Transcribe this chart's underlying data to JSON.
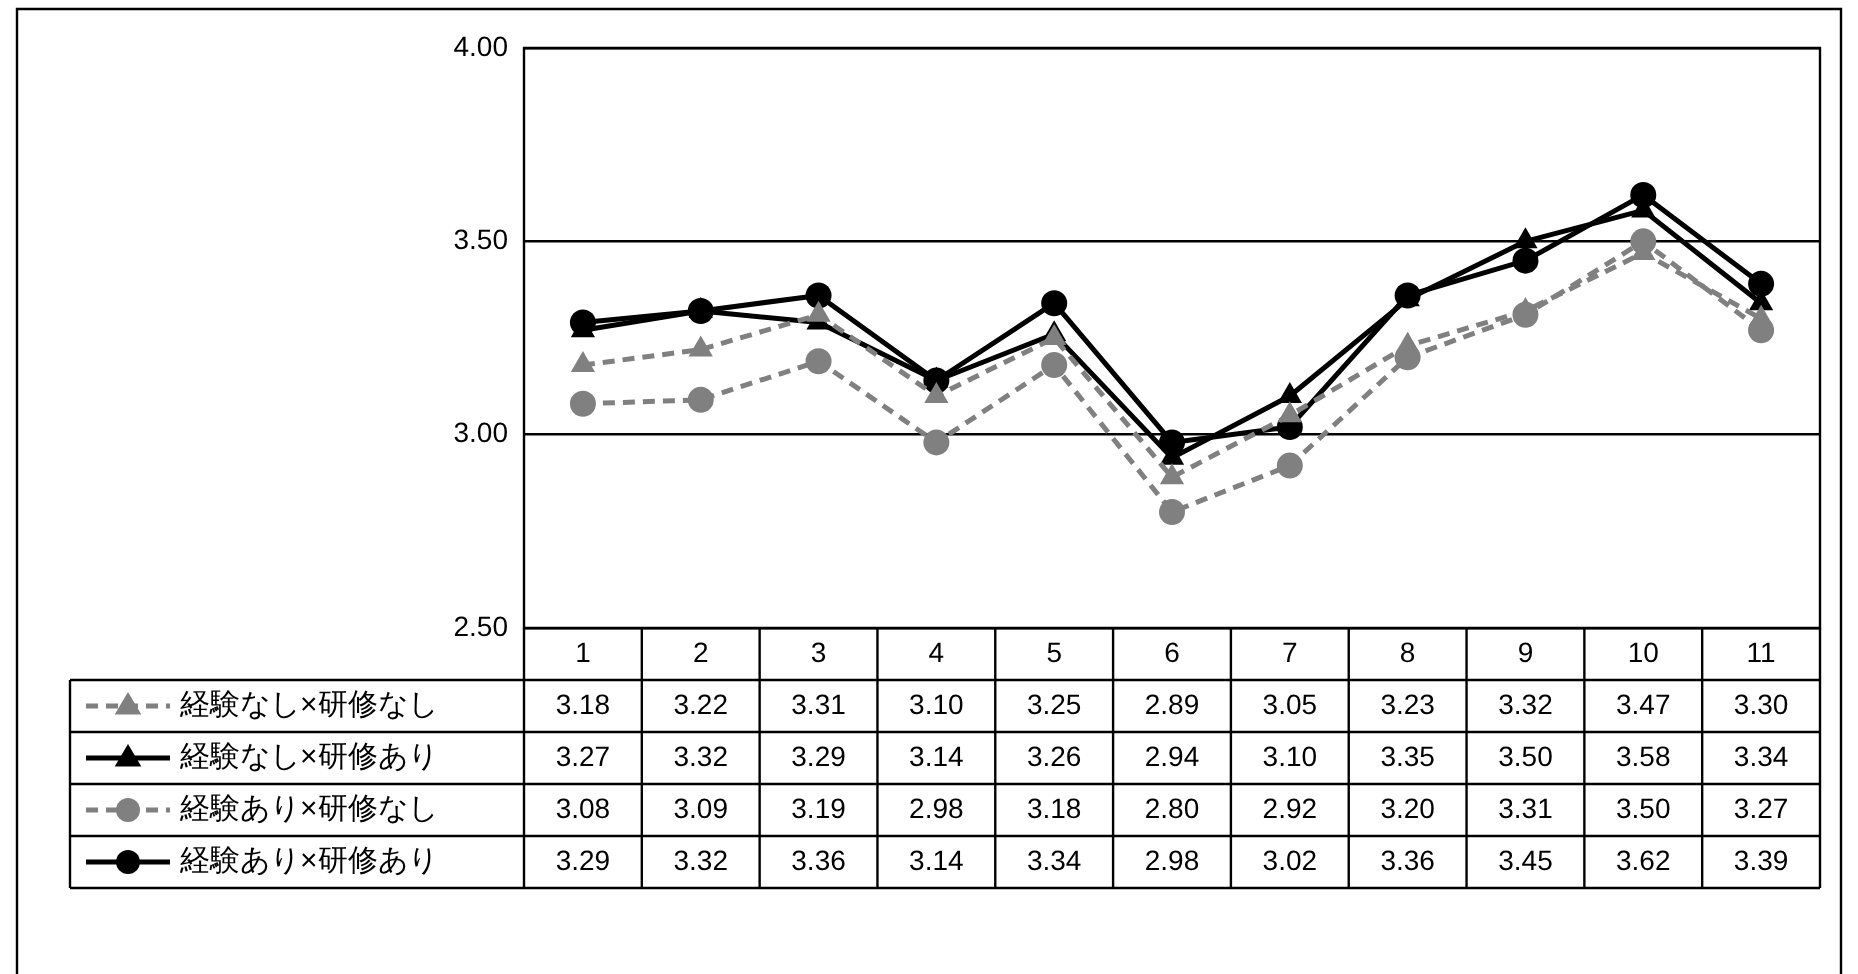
{
  "chart_data": {
    "type": "line",
    "categories": [
      "1",
      "2",
      "3",
      "4",
      "5",
      "6",
      "7",
      "8",
      "9",
      "10",
      "11"
    ],
    "series": [
      {
        "name": "経験なし×研修なし",
        "color": "#808080",
        "marker": "triangle",
        "line_style": "dashed",
        "values": [
          3.18,
          3.22,
          3.31,
          3.1,
          3.25,
          2.89,
          3.05,
          3.23,
          3.32,
          3.47,
          3.3
        ],
        "value_labels": [
          "3.18",
          "3.22",
          "3.31",
          "3.10",
          "3.25",
          "2.89",
          "3.05",
          "3.23",
          "3.32",
          "3.47",
          "3.30"
        ]
      },
      {
        "name": "経験なし×研修あり",
        "color": "#000000",
        "marker": "triangle",
        "line_style": "solid",
        "values": [
          3.27,
          3.32,
          3.29,
          3.14,
          3.26,
          2.94,
          3.1,
          3.35,
          3.5,
          3.58,
          3.34
        ],
        "value_labels": [
          "3.27",
          "3.32",
          "3.29",
          "3.14",
          "3.26",
          "2.94",
          "3.10",
          "3.35",
          "3.50",
          "3.58",
          "3.34"
        ]
      },
      {
        "name": "経験あり×研修なし",
        "color": "#808080",
        "marker": "circle",
        "line_style": "dashed",
        "values": [
          3.08,
          3.09,
          3.19,
          2.98,
          3.18,
          2.8,
          2.92,
          3.2,
          3.31,
          3.5,
          3.27
        ],
        "value_labels": [
          "3.08",
          "3.09",
          "3.19",
          "2.98",
          "3.18",
          "2.80",
          "2.92",
          "3.20",
          "3.31",
          "3.50",
          "3.27"
        ]
      },
      {
        "name": "経験あり×研修あり",
        "color": "#000000",
        "marker": "circle",
        "line_style": "solid",
        "values": [
          3.29,
          3.32,
          3.36,
          3.14,
          3.34,
          2.98,
          3.02,
          3.36,
          3.45,
          3.62,
          3.39
        ],
        "value_labels": [
          "3.29",
          "3.32",
          "3.36",
          "3.14",
          "3.34",
          "2.98",
          "3.02",
          "3.36",
          "3.45",
          "3.62",
          "3.39"
        ]
      }
    ],
    "ylim": [
      2.5,
      4
    ],
    "yticks": [
      {
        "value": 2.5,
        "label": "2.50"
      },
      {
        "value": 3,
        "label": "3.00"
      },
      {
        "value": 3.5,
        "label": "3.50"
      },
      {
        "value": 4,
        "label": "4.00"
      }
    ],
    "grid": "y",
    "legend": "bottom left"
  }
}
